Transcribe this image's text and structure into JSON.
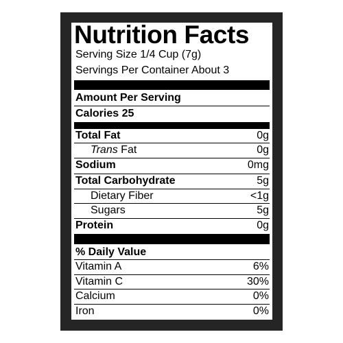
{
  "header": {
    "title": "Nutrition Facts",
    "serving_size": "Serving Size 1/4 Cup (7g)",
    "servings_per_container": "Servings Per Container About 3"
  },
  "amount_per_serving": "Amount Per Serving",
  "calories": {
    "label": "Calories",
    "value": 25
  },
  "nutrients": [
    {
      "name": "Total Fat",
      "amount": "0g",
      "bold": true
    },
    {
      "prefix": "Trans",
      "name": "Fat",
      "amount": "0g",
      "indent": true
    },
    {
      "name": "Sodium",
      "amount": "0mg",
      "bold": true
    },
    {
      "name": "Total Carbohydrate",
      "amount": "5g",
      "bold": true
    },
    {
      "name": "Dietary Fiber",
      "amount": "<1g",
      "indent": true
    },
    {
      "name": "Sugars",
      "amount": "5g",
      "indent": true
    },
    {
      "name": "Protein",
      "amount": "0g",
      "bold": true
    }
  ],
  "daily_value": {
    "heading": "% Daily Value",
    "rows": [
      {
        "name": "Vitamin A",
        "percent": "6%"
      },
      {
        "name": "Vitamin C",
        "percent": "30%"
      },
      {
        "name": "Calcium",
        "percent": "0%"
      },
      {
        "name": "Iron",
        "percent": "0%"
      }
    ]
  }
}
